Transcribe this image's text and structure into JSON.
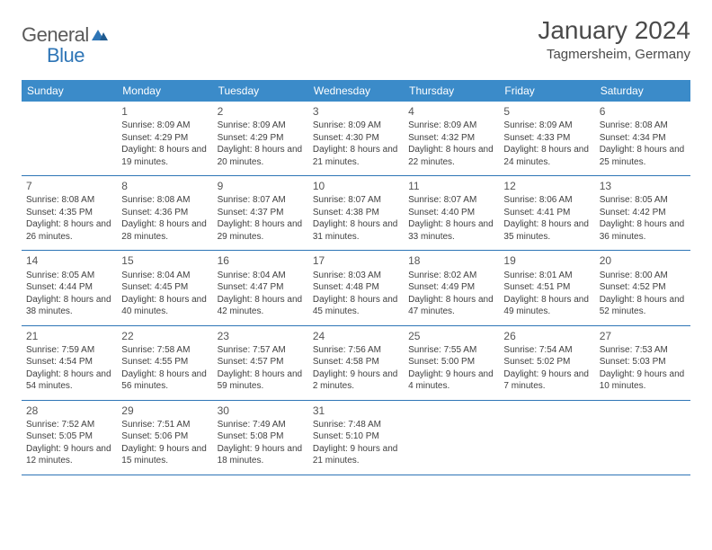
{
  "logo": {
    "text1": "General",
    "text2": "Blue"
  },
  "title": "January 2024",
  "location": "Tagmersheim, Germany",
  "dayHeaders": [
    "Sunday",
    "Monday",
    "Tuesday",
    "Wednesday",
    "Thursday",
    "Friday",
    "Saturday"
  ],
  "colors": {
    "headerBg": "#3b8bc9",
    "headerText": "#ffffff",
    "border": "#2e75b6",
    "logoGray": "#5a5a5a",
    "logoBlue": "#2e75b6"
  },
  "weeks": [
    [
      null,
      {
        "n": "1",
        "sr": "8:09 AM",
        "ss": "4:29 PM",
        "dl": "8 hours and 19 minutes."
      },
      {
        "n": "2",
        "sr": "8:09 AM",
        "ss": "4:29 PM",
        "dl": "8 hours and 20 minutes."
      },
      {
        "n": "3",
        "sr": "8:09 AM",
        "ss": "4:30 PM",
        "dl": "8 hours and 21 minutes."
      },
      {
        "n": "4",
        "sr": "8:09 AM",
        "ss": "4:32 PM",
        "dl": "8 hours and 22 minutes."
      },
      {
        "n": "5",
        "sr": "8:09 AM",
        "ss": "4:33 PM",
        "dl": "8 hours and 24 minutes."
      },
      {
        "n": "6",
        "sr": "8:08 AM",
        "ss": "4:34 PM",
        "dl": "8 hours and 25 minutes."
      }
    ],
    [
      {
        "n": "7",
        "sr": "8:08 AM",
        "ss": "4:35 PM",
        "dl": "8 hours and 26 minutes."
      },
      {
        "n": "8",
        "sr": "8:08 AM",
        "ss": "4:36 PM",
        "dl": "8 hours and 28 minutes."
      },
      {
        "n": "9",
        "sr": "8:07 AM",
        "ss": "4:37 PM",
        "dl": "8 hours and 29 minutes."
      },
      {
        "n": "10",
        "sr": "8:07 AM",
        "ss": "4:38 PM",
        "dl": "8 hours and 31 minutes."
      },
      {
        "n": "11",
        "sr": "8:07 AM",
        "ss": "4:40 PM",
        "dl": "8 hours and 33 minutes."
      },
      {
        "n": "12",
        "sr": "8:06 AM",
        "ss": "4:41 PM",
        "dl": "8 hours and 35 minutes."
      },
      {
        "n": "13",
        "sr": "8:05 AM",
        "ss": "4:42 PM",
        "dl": "8 hours and 36 minutes."
      }
    ],
    [
      {
        "n": "14",
        "sr": "8:05 AM",
        "ss": "4:44 PM",
        "dl": "8 hours and 38 minutes."
      },
      {
        "n": "15",
        "sr": "8:04 AM",
        "ss": "4:45 PM",
        "dl": "8 hours and 40 minutes."
      },
      {
        "n": "16",
        "sr": "8:04 AM",
        "ss": "4:47 PM",
        "dl": "8 hours and 42 minutes."
      },
      {
        "n": "17",
        "sr": "8:03 AM",
        "ss": "4:48 PM",
        "dl": "8 hours and 45 minutes."
      },
      {
        "n": "18",
        "sr": "8:02 AM",
        "ss": "4:49 PM",
        "dl": "8 hours and 47 minutes."
      },
      {
        "n": "19",
        "sr": "8:01 AM",
        "ss": "4:51 PM",
        "dl": "8 hours and 49 minutes."
      },
      {
        "n": "20",
        "sr": "8:00 AM",
        "ss": "4:52 PM",
        "dl": "8 hours and 52 minutes."
      }
    ],
    [
      {
        "n": "21",
        "sr": "7:59 AM",
        "ss": "4:54 PM",
        "dl": "8 hours and 54 minutes."
      },
      {
        "n": "22",
        "sr": "7:58 AM",
        "ss": "4:55 PM",
        "dl": "8 hours and 56 minutes."
      },
      {
        "n": "23",
        "sr": "7:57 AM",
        "ss": "4:57 PM",
        "dl": "8 hours and 59 minutes."
      },
      {
        "n": "24",
        "sr": "7:56 AM",
        "ss": "4:58 PM",
        "dl": "9 hours and 2 minutes."
      },
      {
        "n": "25",
        "sr": "7:55 AM",
        "ss": "5:00 PM",
        "dl": "9 hours and 4 minutes."
      },
      {
        "n": "26",
        "sr": "7:54 AM",
        "ss": "5:02 PM",
        "dl": "9 hours and 7 minutes."
      },
      {
        "n": "27",
        "sr": "7:53 AM",
        "ss": "5:03 PM",
        "dl": "9 hours and 10 minutes."
      }
    ],
    [
      {
        "n": "28",
        "sr": "7:52 AM",
        "ss": "5:05 PM",
        "dl": "9 hours and 12 minutes."
      },
      {
        "n": "29",
        "sr": "7:51 AM",
        "ss": "5:06 PM",
        "dl": "9 hours and 15 minutes."
      },
      {
        "n": "30",
        "sr": "7:49 AM",
        "ss": "5:08 PM",
        "dl": "9 hours and 18 minutes."
      },
      {
        "n": "31",
        "sr": "7:48 AM",
        "ss": "5:10 PM",
        "dl": "9 hours and 21 minutes."
      },
      null,
      null,
      null
    ]
  ]
}
